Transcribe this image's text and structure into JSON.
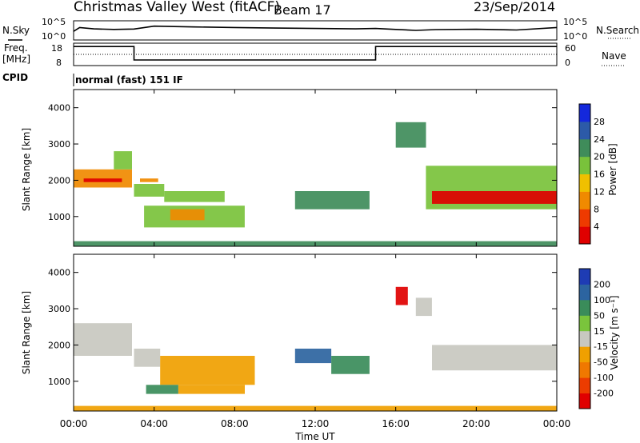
{
  "header": {
    "title": "Christmas Valley West (fitACF)",
    "beam": "Beam 17",
    "date": "23/Sep/2014"
  },
  "noise_panel": {
    "left_label": "N.Sky",
    "right_label": "N.Search",
    "tick_top": "10^5",
    "tick_bottom": "10^0",
    "right_tick_top": "10^5",
    "right_tick_bottom": "10^0"
  },
  "freq_panel": {
    "left_label_1": "Freq.",
    "left_label_2": "[MHz]",
    "right_label": "Nave",
    "left_ticks": [
      "18",
      "8"
    ],
    "right_ticks": [
      "60",
      "0"
    ]
  },
  "cpid": {
    "label": "CPID",
    "value": "normal (fast) 151 IF"
  },
  "x_axis": {
    "label": "Time UT",
    "ticks": [
      "00:00",
      "04:00",
      "08:00",
      "12:00",
      "16:00",
      "20:00",
      "00:00"
    ]
  },
  "power_panel": {
    "ylabel": "Slant Range [km]",
    "yticks": [
      "1000",
      "2000",
      "3000",
      "4000"
    ],
    "colorbar_label": "Power [dB]",
    "colorbar_ticks": [
      "4",
      "8",
      "12",
      "16",
      "20",
      "24",
      "28"
    ],
    "colorbar_colors": [
      "#1428dc",
      "#2c5aa8",
      "#3f8c5a",
      "#79c23b",
      "#f0c000",
      "#f08a00",
      "#ee3a00",
      "#e00000"
    ]
  },
  "velocity_panel": {
    "ylabel": "Slant Range [km]",
    "yticks": [
      "1000",
      "2000",
      "3000",
      "4000"
    ],
    "colorbar_label": "Velocity [m s⁻¹]",
    "colorbar_ticks": [
      "200",
      "100",
      "50",
      "15",
      "-15",
      "-50",
      "-100",
      "-200"
    ],
    "colorbar_colors": [
      "#1e3cb4",
      "#2c64a0",
      "#3a8c5a",
      "#7ac43c",
      "#c8c8c0",
      "#f0a000",
      "#f07800",
      "#ec3c00",
      "#e00000"
    ]
  },
  "chart_data": [
    {
      "type": "line",
      "name": "noise",
      "x": [
        0,
        0.3,
        1,
        2,
        3,
        4,
        5,
        6,
        8,
        10,
        12,
        14,
        15,
        16,
        17,
        18,
        20,
        22,
        24
      ],
      "y": [
        0.55,
        0.35,
        0.42,
        0.45,
        0.43,
        0.28,
        0.3,
        0.32,
        0.35,
        0.38,
        0.4,
        0.42,
        0.4,
        0.45,
        0.5,
        0.46,
        0.44,
        0.48,
        0.35
      ]
    },
    {
      "type": "line",
      "name": "frequency",
      "xlim": [
        0,
        24
      ],
      "x": [
        0,
        3.0,
        3.0,
        15.0,
        15.0,
        24
      ],
      "y": [
        16.5,
        16.5,
        10.5,
        10.5,
        16.5,
        16.5
      ]
    },
    {
      "type": "heatmap",
      "name": "power",
      "xlim": [
        0,
        24
      ],
      "ylim": [
        180,
        4500
      ],
      "blobs": [
        {
          "x": [
            0,
            2.9
          ],
          "y": [
            1800,
            2300
          ],
          "v": 22
        },
        {
          "x": [
            0.5,
            2.4
          ],
          "y": [
            1950,
            2050
          ],
          "v": 28
        },
        {
          "x": [
            2.0,
            2.9
          ],
          "y": [
            2300,
            2800
          ],
          "v": 14
        },
        {
          "x": [
            3.0,
            4.5
          ],
          "y": [
            1550,
            1900
          ],
          "v": 14
        },
        {
          "x": [
            3.3,
            4.2
          ],
          "y": [
            1950,
            2050
          ],
          "v": 20
        },
        {
          "x": [
            3.5,
            8.5
          ],
          "y": [
            700,
            1300
          ],
          "v": 14
        },
        {
          "x": [
            4.5,
            7.5
          ],
          "y": [
            1400,
            1700
          ],
          "v": 12
        },
        {
          "x": [
            4.8,
            6.5
          ],
          "y": [
            900,
            1200
          ],
          "v": 20
        },
        {
          "x": [
            11.0,
            14.7
          ],
          "y": [
            1200,
            1700
          ],
          "v": 10
        },
        {
          "x": [
            16.0,
            17.5
          ],
          "y": [
            2900,
            3600
          ],
          "v": 8
        },
        {
          "x": [
            17.5,
            24
          ],
          "y": [
            1200,
            2400
          ],
          "v": 14
        },
        {
          "x": [
            17.8,
            24
          ],
          "y": [
            1350,
            1700
          ],
          "v": 28
        },
        {
          "x": [
            0,
            24
          ],
          "y": [
            180,
            320
          ],
          "v": 8
        }
      ]
    },
    {
      "type": "heatmap",
      "name": "velocity",
      "xlim": [
        0,
        24
      ],
      "ylim": [
        180,
        4500
      ],
      "blobs": [
        {
          "x": [
            0,
            2.9
          ],
          "y": [
            1700,
            2600
          ],
          "v": 0
        },
        {
          "x": [
            3.0,
            4.3
          ],
          "y": [
            1400,
            1900
          ],
          "v": 0
        },
        {
          "x": [
            4.3,
            9.0
          ],
          "y": [
            900,
            1700
          ],
          "v": -50
        },
        {
          "x": [
            3.6,
            5.2
          ],
          "y": [
            650,
            900
          ],
          "v": 50
        },
        {
          "x": [
            5.2,
            8.5
          ],
          "y": [
            650,
            900
          ],
          "v": -15
        },
        {
          "x": [
            11.0,
            12.8
          ],
          "y": [
            1500,
            1900
          ],
          "v": 100
        },
        {
          "x": [
            12.8,
            14.7
          ],
          "y": [
            1200,
            1700
          ],
          "v": 50
        },
        {
          "x": [
            16.0,
            16.6
          ],
          "y": [
            3100,
            3600
          ],
          "v": -200
        },
        {
          "x": [
            17.0,
            17.8
          ],
          "y": [
            2800,
            3300
          ],
          "v": 0
        },
        {
          "x": [
            17.8,
            24
          ],
          "y": [
            1300,
            2000
          ],
          "v": 0
        },
        {
          "x": [
            0,
            24
          ],
          "y": [
            180,
            320
          ],
          "v": -50
        }
      ]
    }
  ]
}
